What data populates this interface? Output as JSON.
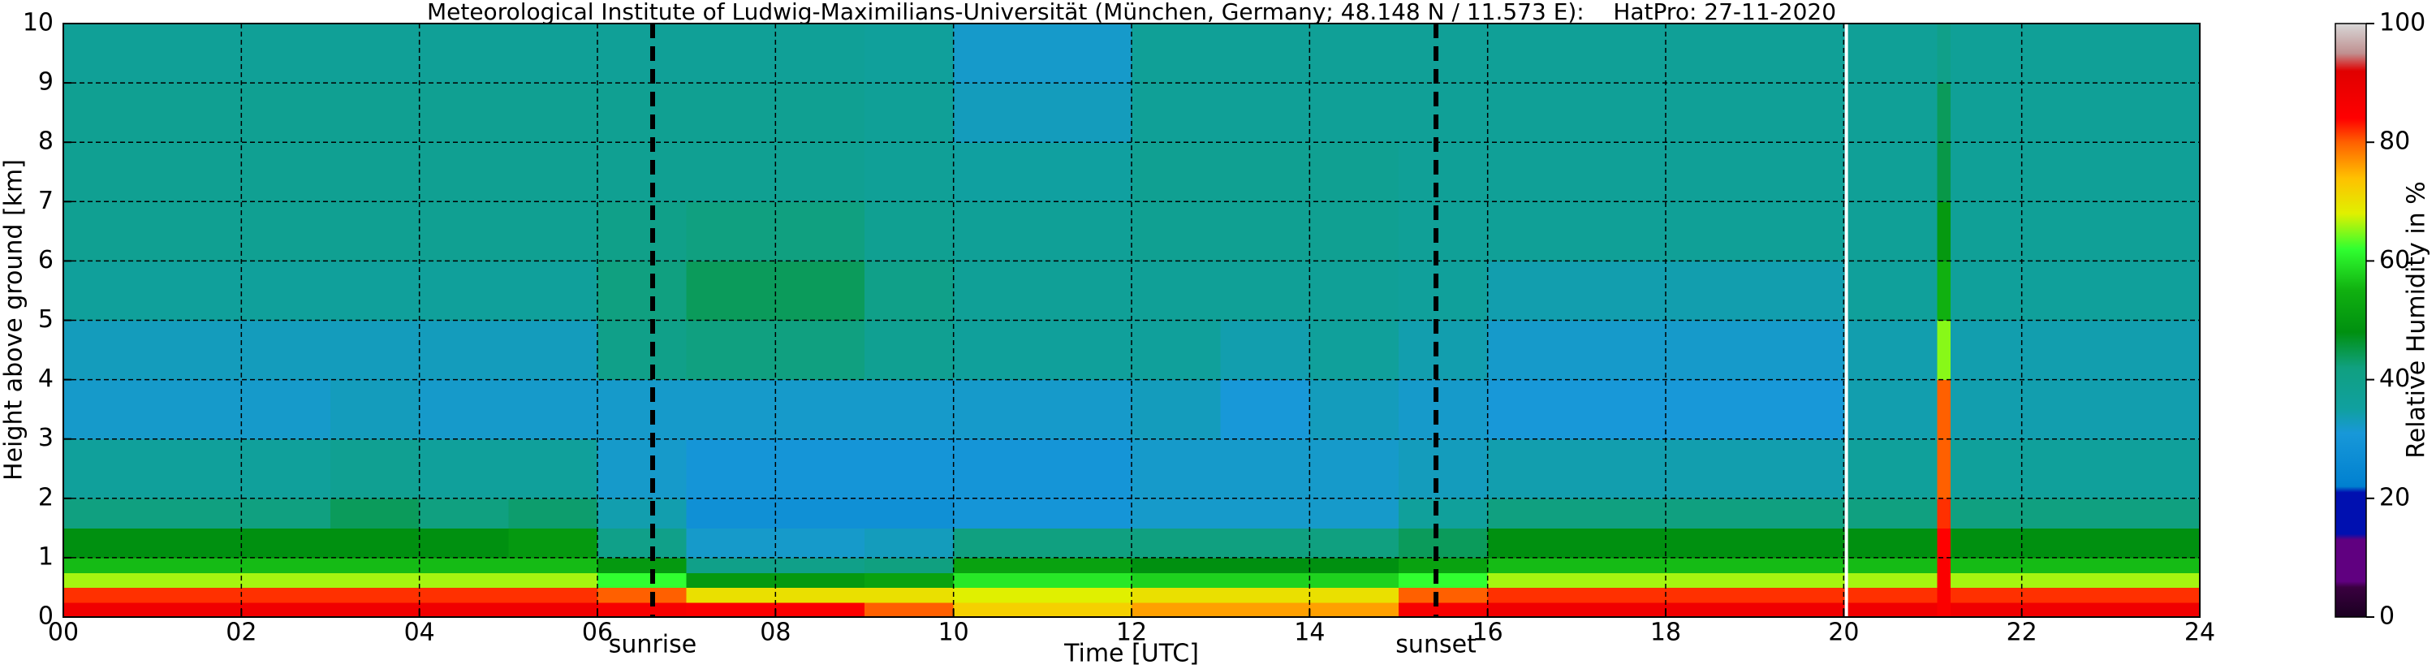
{
  "chart_data": {
    "type": "heatmap",
    "title": "Meteorological Institute of Ludwig-Maximilians-Universität (München, Germany; 48.148 N / 11.573 E):    HatPro: 27-11-2020",
    "xlabel": "Time [UTC]",
    "ylabel": "Height above ground [km]",
    "colorbar_label": "Relative Humidity in %",
    "x_edges": [
      0,
      1,
      2,
      3,
      4,
      5,
      6,
      7,
      8,
      9,
      10,
      11,
      12,
      13,
      14,
      15,
      16,
      17,
      18,
      19,
      20,
      21,
      21.05,
      21.2,
      22,
      23,
      24
    ],
    "y_edges": [
      0,
      0.25,
      0.5,
      0.75,
      1,
      1.5,
      2,
      3,
      4,
      5,
      6,
      7,
      8,
      9,
      10
    ],
    "values": [
      [
        88,
        82,
        66,
        56,
        48,
        42,
        36,
        32,
        33,
        36,
        38,
        38,
        38,
        37
      ],
      [
        88,
        82,
        66,
        56,
        48,
        42,
        36,
        32,
        33,
        36,
        38,
        38,
        38,
        37
      ],
      [
        88,
        82,
        66,
        56,
        48,
        42,
        36,
        32,
        33,
        36,
        38,
        38,
        38,
        37
      ],
      [
        88,
        82,
        66,
        56,
        48,
        44,
        38,
        33,
        33,
        36,
        38,
        38,
        38,
        37
      ],
      [
        88,
        82,
        66,
        56,
        48,
        42,
        36,
        32,
        33,
        36,
        38,
        38,
        38,
        37
      ],
      [
        88,
        82,
        66,
        56,
        50,
        43,
        36,
        32,
        33,
        36,
        38,
        38,
        38,
        37
      ],
      [
        86,
        80,
        62,
        50,
        40,
        34,
        32,
        32,
        40,
        42,
        40,
        38,
        38,
        37
      ],
      [
        85,
        70,
        50,
        40,
        32,
        28,
        30,
        32,
        42,
        44,
        42,
        38,
        38,
        37
      ],
      [
        85,
        70,
        50,
        40,
        32,
        28,
        30,
        32,
        42,
        44,
        42,
        38,
        38,
        37
      ],
      [
        80,
        70,
        52,
        42,
        33,
        28,
        30,
        32,
        38,
        40,
        38,
        37,
        37,
        36
      ],
      [
        72,
        68,
        60,
        52,
        42,
        30,
        30,
        32,
        36,
        37,
        37,
        35,
        33,
        32
      ],
      [
        72,
        68,
        60,
        52,
        42,
        30,
        30,
        32,
        36,
        37,
        37,
        35,
        33,
        32
      ],
      [
        76,
        70,
        58,
        48,
        42,
        32,
        32,
        33,
        36,
        37,
        38,
        38,
        37,
        37
      ],
      [
        76,
        70,
        58,
        48,
        42,
        32,
        32,
        31,
        34,
        37,
        38,
        38,
        37,
        37
      ],
      [
        76,
        70,
        58,
        48,
        42,
        32,
        32,
        33,
        36,
        37,
        38,
        38,
        37,
        37
      ],
      [
        86,
        80,
        62,
        52,
        44,
        36,
        33,
        32,
        34,
        36,
        37,
        37,
        37,
        37
      ],
      [
        88,
        82,
        66,
        56,
        48,
        42,
        34,
        31,
        32,
        34,
        37,
        37,
        37,
        37
      ],
      [
        88,
        82,
        66,
        56,
        48,
        42,
        34,
        31,
        32,
        34,
        37,
        37,
        37,
        37
      ],
      [
        88,
        82,
        66,
        56,
        48,
        42,
        34,
        31,
        32,
        34,
        37,
        37,
        37,
        37
      ],
      [
        88,
        82,
        66,
        56,
        48,
        42,
        34,
        31,
        32,
        34,
        37,
        37,
        37,
        37
      ],
      [
        88,
        82,
        66,
        56,
        48,
        42,
        36,
        34,
        34,
        36,
        37,
        37,
        37,
        37
      ],
      [
        88,
        82,
        66,
        56,
        48,
        42,
        36,
        34,
        34,
        36,
        37,
        37,
        37,
        37
      ],
      [
        85,
        85,
        85,
        85,
        84,
        82,
        80,
        80,
        65,
        55,
        50,
        45,
        44,
        40
      ],
      [
        88,
        82,
        66,
        56,
        48,
        42,
        36,
        34,
        34,
        36,
        37,
        37,
        37,
        37
      ],
      [
        88,
        82,
        66,
        56,
        48,
        42,
        36,
        34,
        34,
        36,
        37,
        37,
        37,
        37
      ],
      [
        88,
        82,
        66,
        56,
        48,
        42,
        36,
        34,
        34,
        36,
        37,
        37,
        37,
        37
      ]
    ],
    "xlim": [
      0,
      24
    ],
    "ylim": [
      0,
      10
    ],
    "xticks": [
      {
        "value": 0,
        "label": "00"
      },
      {
        "value": 2,
        "label": "02"
      },
      {
        "value": 4,
        "label": "04"
      },
      {
        "value": 6,
        "label": "06"
      },
      {
        "value": 8,
        "label": "08"
      },
      {
        "value": 10,
        "label": "10"
      },
      {
        "value": 12,
        "label": "12"
      },
      {
        "value": 14,
        "label": "14"
      },
      {
        "value": 16,
        "label": "16"
      },
      {
        "value": 18,
        "label": "18"
      },
      {
        "value": 20,
        "label": "20"
      },
      {
        "value": 22,
        "label": "22"
      },
      {
        "value": 24,
        "label": "24"
      }
    ],
    "yticks": [
      0,
      1,
      2,
      3,
      4,
      5,
      6,
      7,
      8,
      9,
      10
    ],
    "grid": true,
    "clim": [
      0,
      100
    ],
    "cticks": [
      0,
      20,
      40,
      60,
      80,
      100
    ],
    "colorscale": [
      [
        0,
        "#1a0020"
      ],
      [
        5,
        "#3a0040"
      ],
      [
        6,
        "#600080"
      ],
      [
        13,
        "#600080"
      ],
      [
        14,
        "#0010b0"
      ],
      [
        21,
        "#0010b0"
      ],
      [
        22,
        "#0080d0"
      ],
      [
        31,
        "#1898d8"
      ],
      [
        35,
        "#10a0a0"
      ],
      [
        42,
        "#10a080"
      ],
      [
        48,
        "#009010"
      ],
      [
        55,
        "#10b010"
      ],
      [
        62,
        "#30ff30"
      ],
      [
        68,
        "#e0f000"
      ],
      [
        74,
        "#ffc000"
      ],
      [
        80,
        "#ff6000"
      ],
      [
        84,
        "#ff0000"
      ],
      [
        92,
        "#e00000"
      ],
      [
        95,
        "#c09090"
      ],
      [
        100,
        "#d8d8d8"
      ]
    ],
    "vlines": [
      {
        "x": 6.62,
        "label": "sunrise",
        "color": "#000000"
      },
      {
        "x": 15.42,
        "label": "sunset",
        "color": "#000000"
      },
      {
        "x": 20.03,
        "color": "#ffffff"
      }
    ]
  }
}
